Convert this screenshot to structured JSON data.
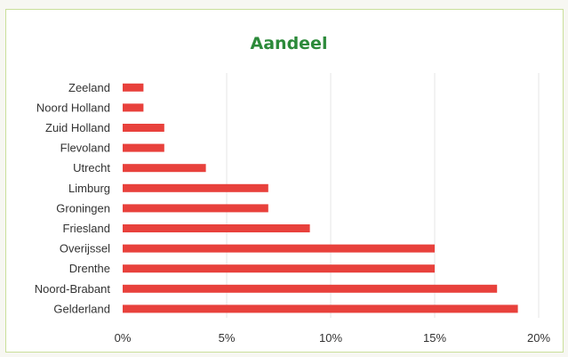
{
  "chart_data": {
    "type": "bar",
    "orientation": "horizontal",
    "title": "Aandeel",
    "categories": [
      "Zeeland",
      "Noord Holland",
      "Zuid Holland",
      "Flevoland",
      "Utrecht",
      "Limburg",
      "Groningen",
      "Friesland",
      "Overijssel",
      "Drenthe",
      "Noord-Brabant",
      "Gelderland"
    ],
    "values": [
      1,
      1,
      2,
      2,
      4,
      7,
      7,
      9,
      15,
      15,
      18,
      19
    ],
    "xlim": [
      0,
      20
    ],
    "xticks": [
      "0%",
      "5%",
      "10%",
      "15%",
      "20%"
    ],
    "xtick_values": [
      0,
      5,
      10,
      15,
      20
    ],
    "grid": "vertical",
    "legend": "none",
    "colors": {
      "bar": "#e8413c",
      "title": "#2c8a3a",
      "grid": "#e4e4e4"
    }
  }
}
